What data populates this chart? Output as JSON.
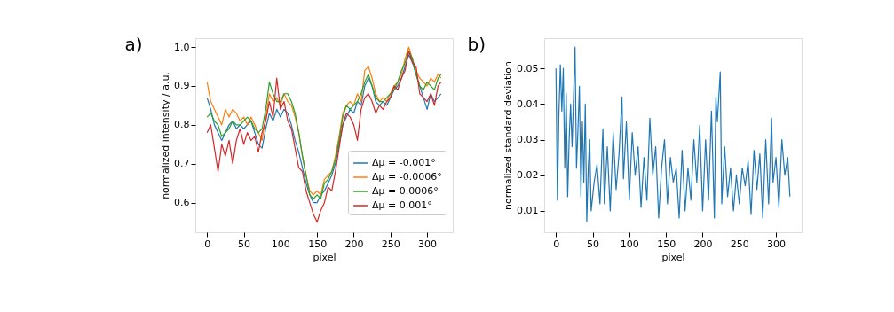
{
  "chart_data": [
    {
      "type": "line",
      "title": "a)",
      "xlabel": "pixel",
      "ylabel": "normalized intensity / a.u.",
      "xlim": [
        -16,
        335
      ],
      "ylim": [
        0.524,
        1.023
      ],
      "xticks": [
        0,
        50,
        100,
        150,
        200,
        250,
        300
      ],
      "yticks": [
        0.6,
        0.7,
        0.8,
        0.9,
        {
          "value": 1.0,
          "label": "1.0"
        }
      ],
      "legend": "bottom right",
      "grid": false,
      "line_style": "solid",
      "x": [
        0,
        5,
        10,
        15,
        20,
        25,
        30,
        35,
        40,
        45,
        50,
        55,
        60,
        65,
        70,
        75,
        80,
        85,
        90,
        95,
        100,
        105,
        110,
        115,
        120,
        125,
        130,
        135,
        140,
        145,
        150,
        155,
        160,
        165,
        170,
        175,
        180,
        185,
        190,
        195,
        200,
        205,
        210,
        215,
        220,
        225,
        230,
        235,
        240,
        245,
        250,
        255,
        260,
        265,
        270,
        275,
        280,
        285,
        290,
        295,
        300,
        305,
        310,
        315,
        319
      ],
      "series": [
        {
          "name": "Δμ = -0.001°",
          "color": "#1f77b4",
          "values": [
            0.87,
            0.84,
            0.8,
            0.78,
            0.76,
            0.78,
            0.8,
            0.81,
            0.79,
            0.8,
            0.79,
            0.8,
            0.81,
            0.78,
            0.75,
            0.74,
            0.79,
            0.83,
            0.81,
            0.84,
            0.82,
            0.84,
            0.83,
            0.8,
            0.76,
            0.73,
            0.69,
            0.65,
            0.62,
            0.6,
            0.6,
            0.62,
            0.63,
            0.65,
            0.67,
            0.7,
            0.75,
            0.8,
            0.82,
            0.84,
            0.83,
            0.86,
            0.85,
            0.9,
            0.92,
            0.9,
            0.86,
            0.85,
            0.86,
            0.85,
            0.87,
            0.89,
            0.9,
            0.92,
            0.95,
            0.98,
            0.96,
            0.93,
            0.9,
            0.87,
            0.84,
            0.88,
            0.86,
            0.87,
            0.88
          ]
        },
        {
          "name": "Δμ = -0.0006°",
          "color": "#ff7f0e",
          "values": [
            0.91,
            0.86,
            0.84,
            0.82,
            0.8,
            0.84,
            0.82,
            0.84,
            0.83,
            0.81,
            0.82,
            0.8,
            0.82,
            0.8,
            0.78,
            0.76,
            0.82,
            0.88,
            0.86,
            0.87,
            0.85,
            0.88,
            0.86,
            0.85,
            0.82,
            0.78,
            0.72,
            0.67,
            0.63,
            0.62,
            0.63,
            0.62,
            0.66,
            0.67,
            0.68,
            0.72,
            0.77,
            0.83,
            0.85,
            0.86,
            0.85,
            0.88,
            0.86,
            0.94,
            0.95,
            0.92,
            0.88,
            0.86,
            0.87,
            0.86,
            0.88,
            0.9,
            0.91,
            0.93,
            0.97,
            1.0,
            0.97,
            0.94,
            0.92,
            0.91,
            0.9,
            0.92,
            0.91,
            0.93,
            0.92
          ]
        },
        {
          "name": "Δμ = 0.0006°",
          "color": "#2ca02c",
          "values": [
            0.82,
            0.83,
            0.81,
            0.8,
            0.77,
            0.78,
            0.79,
            0.81,
            0.8,
            0.8,
            0.81,
            0.82,
            0.81,
            0.79,
            0.78,
            0.79,
            0.84,
            0.91,
            0.88,
            0.86,
            0.86,
            0.88,
            0.88,
            0.86,
            0.83,
            0.78,
            0.72,
            0.67,
            0.62,
            0.61,
            0.62,
            0.61,
            0.65,
            0.66,
            0.68,
            0.71,
            0.76,
            0.82,
            0.85,
            0.84,
            0.85,
            0.86,
            0.88,
            0.91,
            0.93,
            0.9,
            0.87,
            0.86,
            0.86,
            0.87,
            0.88,
            0.89,
            0.91,
            0.94,
            0.96,
            0.99,
            0.97,
            0.93,
            0.9,
            0.89,
            0.91,
            0.9,
            0.89,
            0.92,
            0.93
          ]
        },
        {
          "name": "Δμ = 0.001°",
          "color": "#d62728",
          "values": [
            0.78,
            0.8,
            0.74,
            0.68,
            0.75,
            0.72,
            0.76,
            0.7,
            0.76,
            0.79,
            0.75,
            0.78,
            0.76,
            0.77,
            0.73,
            0.78,
            0.81,
            0.86,
            0.82,
            0.92,
            0.84,
            0.86,
            0.81,
            0.79,
            0.74,
            0.69,
            0.68,
            0.63,
            0.6,
            0.57,
            0.55,
            0.58,
            0.6,
            0.64,
            0.63,
            0.68,
            0.74,
            0.8,
            0.83,
            0.82,
            0.8,
            0.76,
            0.84,
            0.87,
            0.88,
            0.86,
            0.83,
            0.85,
            0.84,
            0.86,
            0.87,
            0.9,
            0.89,
            0.92,
            0.94,
            0.99,
            0.96,
            0.95,
            0.88,
            0.87,
            0.86,
            0.88,
            0.85,
            0.9,
            0.91
          ]
        }
      ]
    },
    {
      "type": "line",
      "title": "b)",
      "xlabel": "pixel",
      "ylabel": "normalized standard deviation",
      "xlim": [
        -16,
        335
      ],
      "ylim": [
        0.004,
        0.0585
      ],
      "xticks": [
        0,
        50,
        100,
        150,
        200,
        250,
        300
      ],
      "yticks": [
        0.01,
        0.02,
        0.03,
        0.04,
        0.05
      ],
      "grid": false,
      "line_style": "solid",
      "x": [
        0,
        2,
        4,
        6,
        8,
        10,
        12,
        14,
        16,
        18,
        20,
        22,
        26,
        28,
        30,
        32,
        34,
        36,
        38,
        40,
        42,
        44,
        46,
        48,
        52,
        56,
        60,
        64,
        66,
        70,
        74,
        78,
        82,
        86,
        90,
        92,
        96,
        100,
        104,
        108,
        112,
        116,
        120,
        124,
        128,
        132,
        136,
        140,
        144,
        148,
        152,
        156,
        160,
        164,
        168,
        172,
        176,
        180,
        184,
        188,
        192,
        196,
        200,
        204,
        208,
        212,
        216,
        218,
        220,
        224,
        226,
        230,
        234,
        238,
        242,
        246,
        250,
        254,
        258,
        262,
        266,
        270,
        274,
        278,
        282,
        286,
        290,
        294,
        296,
        300,
        304,
        308,
        312,
        316,
        319
      ],
      "series": [
        {
          "color": "#1f77b4",
          "values": [
            0.05,
            0.013,
            0.037,
            0.051,
            0.038,
            0.05,
            0.022,
            0.043,
            0.014,
            0.03,
            0.04,
            0.028,
            0.056,
            0.022,
            0.033,
            0.045,
            0.014,
            0.035,
            0.018,
            0.04,
            0.007,
            0.022,
            0.03,
            0.01,
            0.018,
            0.023,
            0.012,
            0.033,
            0.012,
            0.028,
            0.01,
            0.032,
            0.016,
            0.026,
            0.042,
            0.019,
            0.035,
            0.013,
            0.032,
            0.02,
            0.028,
            0.011,
            0.025,
            0.013,
            0.036,
            0.02,
            0.028,
            0.008,
            0.022,
            0.03,
            0.012,
            0.025,
            0.018,
            0.022,
            0.008,
            0.027,
            0.01,
            0.022,
            0.013,
            0.03,
            0.018,
            0.034,
            0.01,
            0.03,
            0.013,
            0.038,
            0.008,
            0.042,
            0.035,
            0.049,
            0.012,
            0.028,
            0.014,
            0.022,
            0.01,
            0.02,
            0.012,
            0.022,
            0.017,
            0.024,
            0.009,
            0.027,
            0.016,
            0.026,
            0.008,
            0.03,
            0.012,
            0.036,
            0.018,
            0.025,
            0.011,
            0.03,
            0.02,
            0.025,
            0.014
          ]
        }
      ]
    }
  ]
}
